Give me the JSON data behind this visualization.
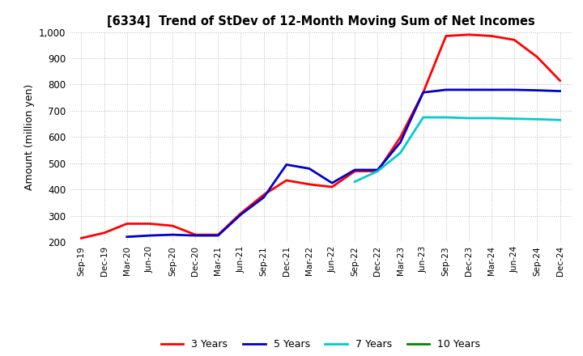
{
  "title": "[6334]  Trend of StDev of 12-Month Moving Sum of Net Incomes",
  "ylabel": "Amount (million yen)",
  "ylim": [
    200,
    1000
  ],
  "yticks": [
    200,
    300,
    400,
    500,
    600,
    700,
    800,
    900,
    1000
  ],
  "background_color": "#ffffff",
  "grid_color": "#bbbbbb",
  "x_labels": [
    "Sep-19",
    "Dec-19",
    "Mar-20",
    "Jun-20",
    "Sep-20",
    "Dec-20",
    "Mar-21",
    "Jun-21",
    "Sep-21",
    "Dec-21",
    "Mar-22",
    "Jun-22",
    "Sep-22",
    "Dec-22",
    "Mar-23",
    "Jun-23",
    "Sep-23",
    "Dec-23",
    "Mar-24",
    "Jun-24",
    "Sep-24",
    "Dec-24"
  ],
  "series": [
    {
      "label": "3 Years",
      "color": "#ff0000",
      "linewidth": 2.0,
      "data": [
        215,
        235,
        270,
        270,
        262,
        228,
        228,
        310,
        380,
        435,
        420,
        410,
        470,
        470,
        600,
        770,
        985,
        990,
        985,
        970,
        905,
        815
      ]
    },
    {
      "label": "5 Years",
      "color": "#0000cc",
      "linewidth": 2.0,
      "data": [
        null,
        null,
        220,
        225,
        228,
        225,
        225,
        305,
        370,
        495,
        480,
        425,
        475,
        475,
        580,
        770,
        780,
        780,
        780,
        780,
        778,
        775
      ]
    },
    {
      "label": "7 Years",
      "color": "#00cccc",
      "linewidth": 2.0,
      "data": [
        null,
        null,
        null,
        null,
        null,
        null,
        null,
        null,
        null,
        null,
        null,
        null,
        430,
        470,
        540,
        675,
        675,
        672,
        672,
        670,
        668,
        665
      ]
    },
    {
      "label": "10 Years",
      "color": "#008800",
      "linewidth": 2.0,
      "data": [
        null,
        null,
        null,
        null,
        null,
        null,
        null,
        null,
        null,
        null,
        null,
        null,
        null,
        null,
        null,
        null,
        null,
        null,
        null,
        null,
        null,
        null
      ]
    }
  ],
  "legend_entries": [
    "3 Years",
    "5 Years",
    "7 Years",
    "10 Years"
  ],
  "legend_colors": [
    "#ff0000",
    "#0000cc",
    "#00cccc",
    "#008800"
  ]
}
